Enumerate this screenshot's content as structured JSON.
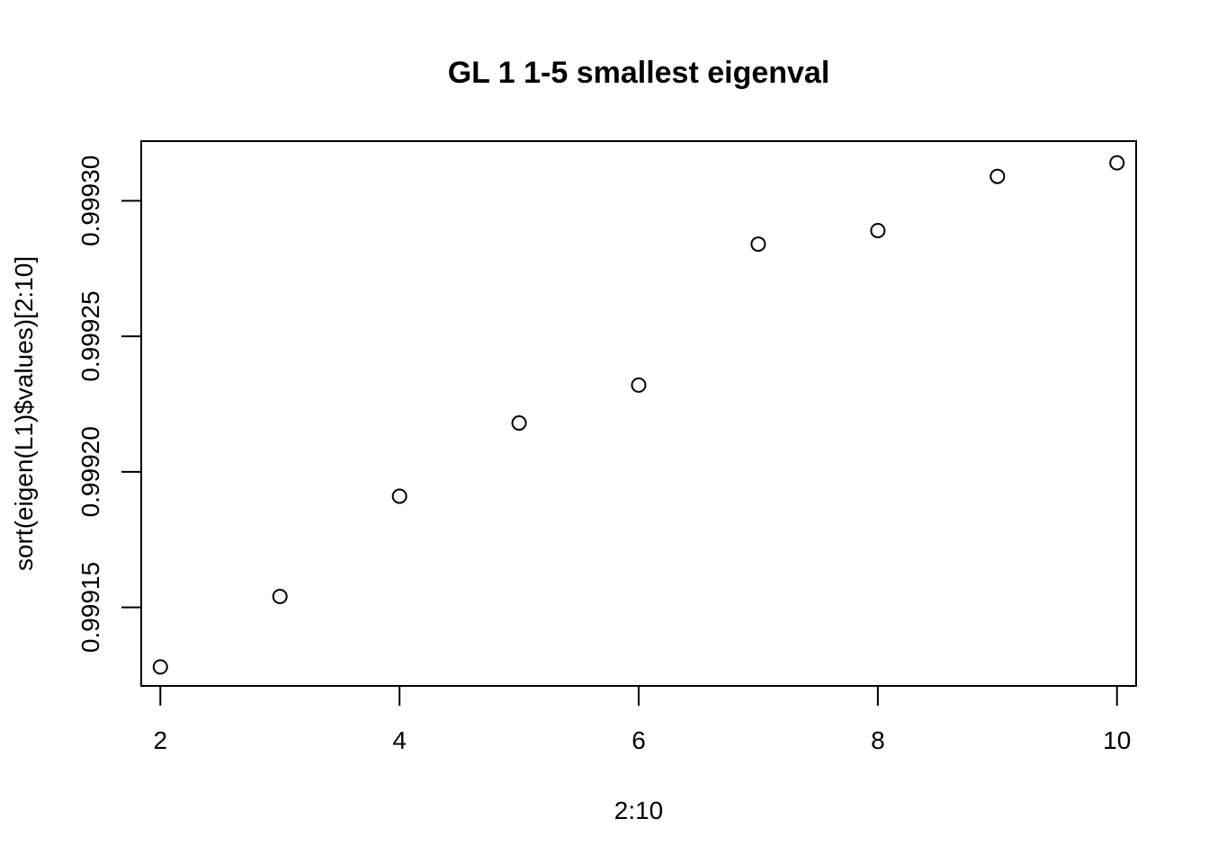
{
  "chart_data": {
    "type": "scatter",
    "title": "GL 1 1-5 smallest eigenval",
    "xlabel": "2:10",
    "ylabel": "sort(eigen(L1)$values)[2:10]",
    "x": [
      2,
      3,
      4,
      5,
      6,
      7,
      8,
      9,
      10
    ],
    "y": [
      0.999128,
      0.999154,
      0.999191,
      0.999218,
      0.999232,
      0.999284,
      0.999289,
      0.999309,
      0.999314
    ],
    "xlim": [
      1.84,
      10.16
    ],
    "ylim": [
      0.999121,
      0.999322
    ],
    "xticks": [
      2,
      4,
      6,
      8,
      10
    ],
    "xtick_labels": [
      "2",
      "4",
      "6",
      "8",
      "10"
    ],
    "yticks": [
      0.99915,
      0.9992,
      0.99925,
      0.9993
    ],
    "ytick_labels": [
      "0.99915",
      "0.99920",
      "0.99925",
      "0.99930"
    ],
    "grid": false,
    "marker": "open-circle"
  }
}
